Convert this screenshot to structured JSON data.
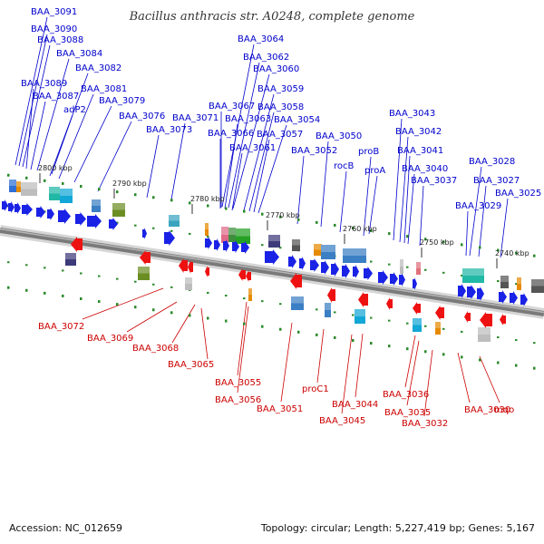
{
  "title": "Bacillus anthracis str. A0248, complete genome",
  "footer": {
    "accession": "Accession: NC_012659",
    "summary": "Topology: circular; Length: 5,227,419 bp; Genes: 5,167"
  },
  "ticks": [
    "2800 kbp",
    "2790 kbp",
    "2780 kbp",
    "2770 kbp",
    "2760 kbp",
    "2750 kbp",
    "2740 kbp"
  ],
  "forward_genes": [
    "BAA_3091",
    "BAA_3090",
    "BAA_3088",
    "BAA_3084",
    "BAA_3082",
    "BAA_3089",
    "BAA_3087",
    "BAA_3081",
    "adP2",
    "BAA_3079",
    "BAA_3076",
    "BAA_3071",
    "BAA_3073",
    "BAA_3064",
    "BAA_3062",
    "BAA_3060",
    "BAA_3059",
    "BAA_3067",
    "BAA_3058",
    "BAA_3063",
    "BAA_3054",
    "BAA_3066",
    "BAA_3057",
    "BAA_3061",
    "BAA_3050",
    "BAA_3052",
    "proB",
    "rocB",
    "proA",
    "BAA_3043",
    "BAA_3042",
    "BAA_3041",
    "BAA_3040",
    "BAA_3037",
    "BAA_3028",
    "BAA_3027",
    "BAA_3025",
    "BAA_3029"
  ],
  "reverse_genes": [
    "BAA_3072",
    "BAA_3069",
    "BAA_3068",
    "BAA_3065",
    "BAA_3055",
    "BAA_3056",
    "BAA_3051",
    "proC1",
    "BAA_3044",
    "BAA_3045",
    "BAA_3036",
    "BAA_3035",
    "BAA_3032",
    "BAA_3030",
    "mqo"
  ],
  "colors": {
    "forward": "#0000cc",
    "reverse": "#cc0000",
    "forward_arrow": "#1a22e6",
    "reverse_arrow": "#ee1111",
    "backbone": "#7a7a7a",
    "dots": "#2a8a2a"
  }
}
